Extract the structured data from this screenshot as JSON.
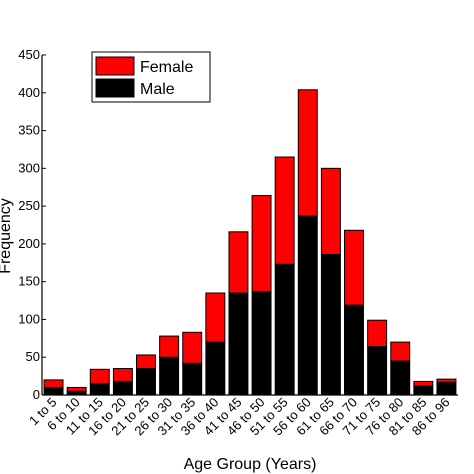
{
  "chart_data": {
    "type": "bar",
    "stacked": true,
    "xlabel": "Age Group (Years)",
    "ylabel": "Frequency",
    "ylim": [
      0,
      450
    ],
    "yticks": [
      0,
      50,
      100,
      150,
      200,
      250,
      300,
      350,
      400,
      450
    ],
    "grid": false,
    "legend_position": "top-left",
    "categories": [
      "1 to 5",
      "6 to 10",
      "11 to 15",
      "16 to 20",
      "21 to 25",
      "26 to 30",
      "31 to 35",
      "36 to 40",
      "41 to 45",
      "46 to 50",
      "51 to 55",
      "56 to 60",
      "61 to 65",
      "66 to 70",
      "71 to 75",
      "76 to 80",
      "81 to 85",
      "86 to 96"
    ],
    "series": [
      {
        "name": "Male",
        "color": "#000000",
        "values": [
          10,
          5,
          15,
          18,
          35,
          50,
          42,
          70,
          135,
          137,
          173,
          237,
          186,
          119,
          64,
          45,
          12,
          17
        ]
      },
      {
        "name": "Female",
        "color": "#ff0000",
        "values": [
          10,
          5,
          19,
          17,
          18,
          28,
          41,
          65,
          81,
          127,
          142,
          167,
          114,
          99,
          35,
          25,
          6,
          4
        ]
      }
    ],
    "legend_order": [
      "Female",
      "Male"
    ]
  }
}
